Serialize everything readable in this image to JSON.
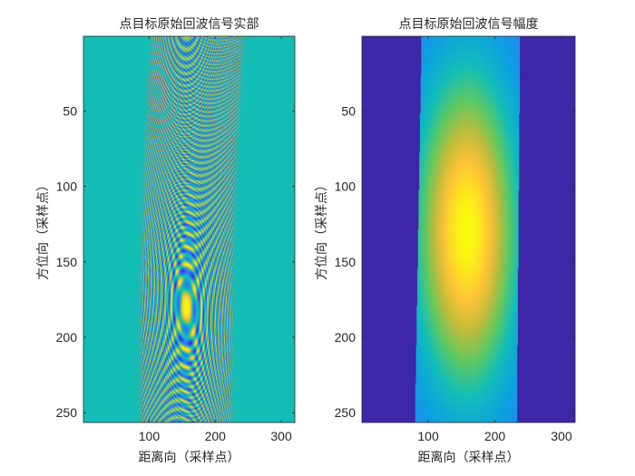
{
  "chart_data": [
    {
      "type": "heatmap",
      "title": "点目标原始回波信号实部",
      "xlabel": "距离向（采样点）",
      "ylabel": "方位向（采样点）",
      "xlim": [
        0.5,
        320.5
      ],
      "ylim": [
        0.5,
        256.5
      ],
      "x_ticks": [
        100,
        200,
        300
      ],
      "y_ticks": [
        50,
        100,
        150,
        200,
        250
      ],
      "y_reversed": true,
      "colormap": "parula",
      "background_color": "#13BEB7",
      "signal": {
        "range_center": 158,
        "range_halfwidth": 75,
        "range_skew": -4,
        "azimuth_center": 180,
        "range_chirp": 0.3,
        "azimuth_chirp": 0.0009,
        "migration_curvature": 0.0025
      }
    },
    {
      "type": "heatmap",
      "title": "点目标原始回波信号幅度",
      "xlabel": "距离向（采样点）",
      "ylabel": "方位向（采样点）",
      "xlim": [
        0.5,
        320.5
      ],
      "ylim": [
        0.5,
        256.5
      ],
      "x_ticks": [
        100,
        200,
        300
      ],
      "y_ticks": [
        50,
        100,
        150,
        200,
        250
      ],
      "y_reversed": true,
      "colormap": "parula",
      "background_color": "#3E26A8",
      "signal": {
        "range_left_top": 90,
        "range_right_top": 238,
        "range_left_bottom": 80,
        "range_right_bottom": 233,
        "peak_range": 158,
        "peak_azimuth": 130,
        "range_sigma": 80,
        "azimuth_sigma": 110
      }
    }
  ]
}
